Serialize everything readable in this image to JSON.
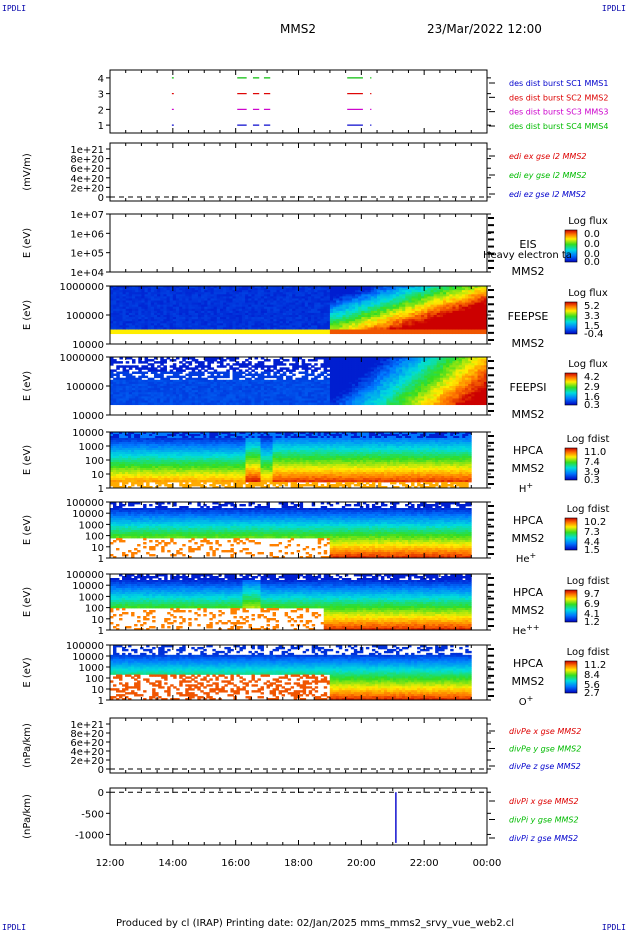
{
  "header": {
    "corner_tl": "IPDLI",
    "corner_tr": "IPDLI",
    "corner_bl": "IPDLI",
    "corner_br": "IPDLI",
    "spacecraft": "MMS2",
    "datetime": "23/Mar/2022 12:00"
  },
  "footer": {
    "text": "Produced by cl (IRAP)    Printing date: 02/Jan/2025    mms_mms2_srvy_vue_web2.cl"
  },
  "colors": {
    "c1": "#0000cc",
    "c2": "#dd0000",
    "c3": "#cc00cc",
    "c4": "#00bb00"
  },
  "chart_data": [
    {
      "type": "line",
      "id": "burst",
      "yticks": [
        "4",
        "3",
        "2",
        "1"
      ],
      "legend": [
        "des dist burst SC1 MMS1",
        "des dist burst SC2 MMS2",
        "des dist burst SC3 MMS3",
        "des dist burst SC4 MMS4"
      ],
      "ylim": [
        0.5,
        4.5
      ],
      "series": [
        {
          "level": 4,
          "color": "c4",
          "intervals": [
            [
              13.97,
              14.03
            ],
            [
              16.05,
              16.35
            ],
            [
              16.55,
              16.75
            ],
            [
              16.9,
              17.1
            ],
            [
              19.55,
              20.05
            ],
            [
              20.28,
              20.32
            ]
          ]
        },
        {
          "level": 3,
          "color": "c2",
          "intervals": [
            [
              13.97,
              14.03
            ],
            [
              16.05,
              16.35
            ],
            [
              16.55,
              16.75
            ],
            [
              16.9,
              17.1
            ],
            [
              19.55,
              20.05
            ],
            [
              20.28,
              20.32
            ]
          ]
        },
        {
          "level": 2,
          "color": "c3",
          "intervals": [
            [
              13.97,
              14.03
            ],
            [
              16.05,
              16.35
            ],
            [
              16.55,
              16.75
            ],
            [
              16.9,
              17.1
            ],
            [
              19.55,
              20.05
            ],
            [
              20.28,
              20.32
            ]
          ]
        },
        {
          "level": 1,
          "color": "c1",
          "intervals": [
            [
              13.97,
              14.03
            ],
            [
              16.05,
              16.35
            ],
            [
              16.55,
              16.75
            ],
            [
              16.9,
              17.1
            ],
            [
              19.55,
              20.05
            ],
            [
              20.28,
              20.32
            ]
          ]
        }
      ]
    },
    {
      "type": "line",
      "id": "edi",
      "ylabel": "(mV/m)",
      "yticks": [
        "1e+21",
        "8e+20",
        "6e+20",
        "4e+20",
        "2e+20",
        "0"
      ],
      "legend": [
        "edi ex gse l2 MMS2",
        "edi ey gse l2 MMS2",
        "edi ez gse l2 MMS2"
      ],
      "zero_line": true
    },
    {
      "type": "heatmap",
      "id": "eis",
      "ylabel": "E (eV)",
      "yticks": [
        "1e+07",
        "1e+06",
        "1e+05",
        "1e+04"
      ],
      "side": [
        "EIS",
        "MMS2"
      ],
      "extra": "Heavy electron ta",
      "cbar_title": "Log flux",
      "cbar_ticks": [
        "0.0",
        "0.0",
        "0.0",
        "0.0"
      ],
      "empty": true
    },
    {
      "type": "heatmap",
      "id": "feepse",
      "ylabel": "E (eV)",
      "yticks": [
        "1000000",
        "100000",
        "10000"
      ],
      "side": [
        "FEEPSE",
        "MMS2"
      ],
      "cbar_title": "Log flux",
      "cbar_ticks": [
        "5.2",
        "3.3",
        "1.5",
        "-0.4"
      ],
      "t_range": [
        12.0,
        24.0
      ]
    },
    {
      "type": "heatmap",
      "id": "feepsi",
      "ylabel": "E (eV)",
      "yticks": [
        "1000000",
        "100000",
        "10000"
      ],
      "side": [
        "FEEPSI",
        "MMS2"
      ],
      "cbar_title": "Log flux",
      "cbar_ticks": [
        "4.2",
        "2.9",
        "1.6",
        "0.3"
      ],
      "t_range": [
        12.0,
        24.0
      ]
    },
    {
      "type": "heatmap",
      "id": "hpca_h",
      "ylabel": "E (eV)",
      "yticks": [
        "10000",
        "1000",
        "100",
        "10",
        "1"
      ],
      "side": [
        "HPCA",
        "MMS2"
      ],
      "species": "H",
      "species_sup": "+",
      "cbar_title": "Log fdist",
      "cbar_ticks": [
        "11.0",
        "7.4",
        "3.9",
        "0.3"
      ],
      "t_range": [
        12.0,
        23.5
      ]
    },
    {
      "type": "heatmap",
      "id": "hpca_he",
      "ylabel": "E (eV)",
      "yticks": [
        "100000",
        "10000",
        "1000",
        "100",
        "10",
        "1"
      ],
      "side": [
        "HPCA",
        "MMS2"
      ],
      "species": "He",
      "species_sup": "+",
      "cbar_title": "Log fdist",
      "cbar_ticks": [
        "10.2",
        "7.3",
        "4.4",
        "1.5"
      ],
      "t_range": [
        12.0,
        23.5
      ]
    },
    {
      "type": "heatmap",
      "id": "hpca_hepp",
      "ylabel": "E (eV)",
      "yticks": [
        "100000",
        "10000",
        "1000",
        "100",
        "10",
        "1"
      ],
      "side": [
        "HPCA",
        "MMS2"
      ],
      "species": "He",
      "species_sup": "++",
      "cbar_title": "Log fdist",
      "cbar_ticks": [
        "9.7",
        "6.9",
        "4.1",
        "1.2"
      ],
      "t_range": [
        12.0,
        23.5
      ]
    },
    {
      "type": "heatmap",
      "id": "hpca_o",
      "ylabel": "E (eV)",
      "yticks": [
        "100000",
        "10000",
        "1000",
        "100",
        "10",
        "1"
      ],
      "side": [
        "HPCA",
        "MMS2"
      ],
      "species": "O",
      "species_sup": "+",
      "cbar_title": "Log fdist",
      "cbar_ticks": [
        "11.2",
        "8.4",
        "5.6",
        "2.7"
      ],
      "t_range": [
        12.0,
        23.5
      ]
    },
    {
      "type": "line",
      "id": "divpe",
      "ylabel": "(nPa/km)",
      "yticks": [
        "1e+21",
        "8e+20",
        "6e+20",
        "4e+20",
        "2e+20",
        "0"
      ],
      "legend": [
        "divPe x gse MMS2",
        "divPe y gse MMS2",
        "divPe z gse MMS2"
      ],
      "zero_line": true
    },
    {
      "type": "line",
      "id": "divpi",
      "ylabel": "(nPa/km)",
      "yticks": [
        "0",
        "-500",
        "-1000"
      ],
      "ylim": [
        -1250,
        100
      ],
      "legend": [
        "divPi x gse MMS2",
        "divPi y gse MMS2",
        "divPi z gse MMS2"
      ],
      "zero_line": true,
      "spike": {
        "t": 21.1,
        "from": 0,
        "to": -1200
      }
    }
  ],
  "xaxis": {
    "ticks": [
      "12:00",
      "14:00",
      "16:00",
      "18:00",
      "20:00",
      "22:00",
      "00:00"
    ],
    "t_min": 12,
    "t_max": 24
  }
}
